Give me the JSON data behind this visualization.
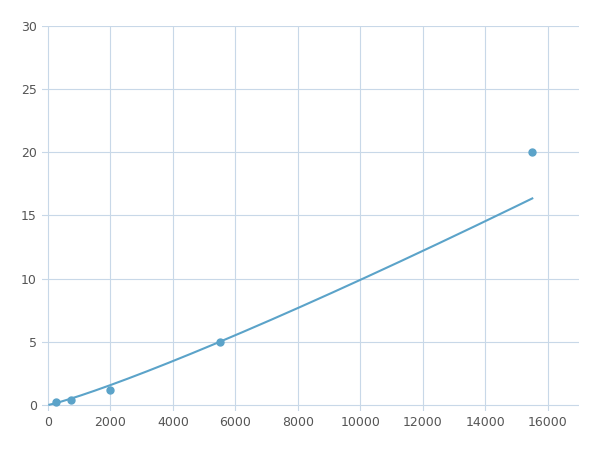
{
  "x_data": [
    250,
    750,
    2000,
    5500,
    15500
  ],
  "y_data": [
    0.2,
    0.4,
    1.2,
    5.0,
    20.0
  ],
  "line_color": "#5ba3c9",
  "marker_color": "#5ba3c9",
  "marker_size": 5,
  "marker_style": "o",
  "xlim": [
    -200,
    17000
  ],
  "ylim": [
    -0.5,
    30
  ],
  "xticks": [
    0,
    2000,
    4000,
    6000,
    8000,
    10000,
    12000,
    14000,
    16000
  ],
  "yticks": [
    0,
    5,
    10,
    15,
    20,
    25,
    30
  ],
  "grid_color": "#c8d8e8",
  "background_color": "#ffffff",
  "fig_width": 6.0,
  "fig_height": 4.5,
  "dpi": 100
}
